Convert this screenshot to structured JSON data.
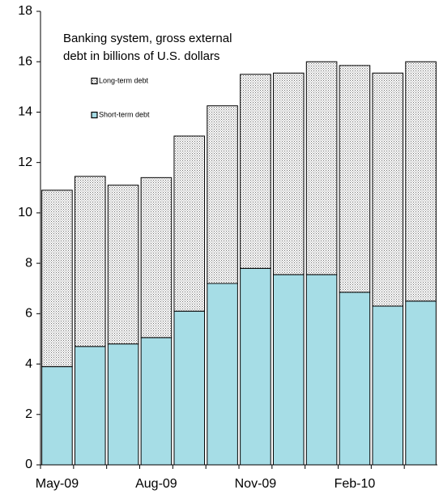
{
  "chart_data": {
    "type": "stacked-bar",
    "title": [
      "Banking system, gross external",
      "debt in billions of U.S. dollars"
    ],
    "categories": [
      "May-09",
      null,
      null,
      "Aug-09",
      null,
      null,
      "Nov-09",
      null,
      null,
      "Feb-10",
      null,
      null
    ],
    "series": [
      {
        "name": "Short-term  debt",
        "color": "#a6dde6",
        "values": [
          3.9,
          4.7,
          4.8,
          5.05,
          6.1,
          7.2,
          7.8,
          7.55,
          7.55,
          6.85,
          6.3,
          6.5
        ]
      },
      {
        "name": "Long-term  debt",
        "color": "#6e6e6e",
        "values": [
          7.0,
          6.75,
          6.3,
          6.35,
          6.95,
          7.05,
          7.7,
          8.0,
          8.45,
          9.0,
          9.25,
          9.5
        ]
      }
    ],
    "ylim": [
      0,
      18
    ],
    "yticks": [
      0,
      2,
      4,
      6,
      8,
      10,
      12,
      14,
      16,
      18
    ]
  }
}
